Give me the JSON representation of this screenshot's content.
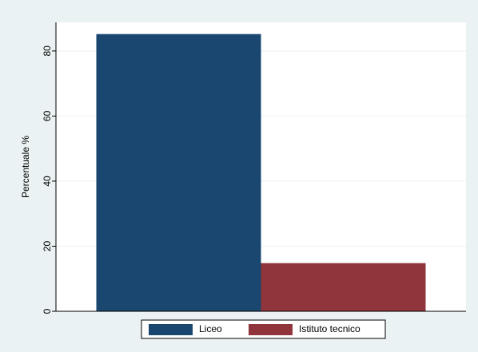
{
  "chart_data": {
    "type": "bar",
    "y_label": "Percentuale %",
    "series": [
      {
        "name": "Liceo",
        "color": "#1a476f",
        "values": [
          85.2
        ]
      },
      {
        "name": "Istituto tecnico",
        "color": "#90353b",
        "values": [
          14.8
        ]
      }
    ],
    "ylim": [
      0,
      88.8
    ],
    "yticks": [
      0,
      20,
      40,
      60,
      80
    ],
    "grid": true,
    "legend": "bottom"
  }
}
